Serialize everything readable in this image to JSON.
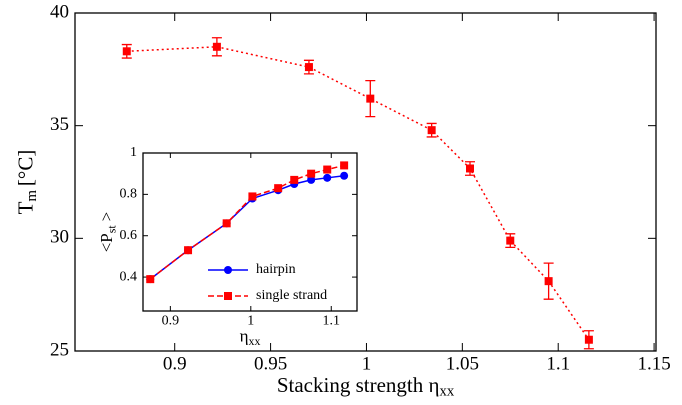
{
  "chart_data": [
    {
      "type": "line",
      "xlabel": {
        "text": "Stacking strength η",
        "sub": "xx"
      },
      "ylabel": {
        "text": "T",
        "sub": "m",
        "unit": "[°C]"
      },
      "x": [
        0.875,
        0.922,
        0.97,
        1.002,
        1.034,
        1.054,
        1.075,
        1.095,
        1.116
      ],
      "values": [
        38.3,
        38.5,
        37.6,
        36.2,
        34.8,
        33.1,
        29.9,
        28.1,
        25.5
      ],
      "errors": [
        0.3,
        0.4,
        0.3,
        0.8,
        0.3,
        0.3,
        0.3,
        0.8,
        0.4
      ],
      "color": "#ff0000",
      "xlim": [
        0.848,
        1.151
      ],
      "xticks": [
        0.9,
        0.95,
        1,
        1.05,
        1.1,
        1.15
      ],
      "ylim": [
        25,
        40
      ],
      "yticks": [
        25,
        30,
        35,
        40
      ]
    },
    {
      "type": "line",
      "xlabel": {
        "text": "η",
        "sub": "xx"
      },
      "ylabel": {
        "text": "<P",
        "sub": "st",
        "unit": ">"
      },
      "x": [
        0.875,
        0.922,
        0.97,
        1.002,
        1.034,
        1.054,
        1.075,
        1.095,
        1.116
      ],
      "series": [
        {
          "name": "hairpin",
          "color": "#0000ff",
          "values": [
            0.39,
            0.53,
            0.66,
            0.78,
            0.82,
            0.85,
            0.87,
            0.88,
            0.89
          ]
        },
        {
          "name": "single strand",
          "color": "#ff0000",
          "values": [
            0.39,
            0.53,
            0.66,
            0.79,
            0.83,
            0.87,
            0.9,
            0.92,
            0.94
          ]
        }
      ],
      "xlim": [
        0.866,
        1.132
      ],
      "xticks": [
        0.9,
        1,
        1.1
      ],
      "ylim": [
        0.236,
        1
      ],
      "yticks": [
        0.4,
        0.6,
        0.8,
        1
      ],
      "legend": "lower right"
    }
  ]
}
